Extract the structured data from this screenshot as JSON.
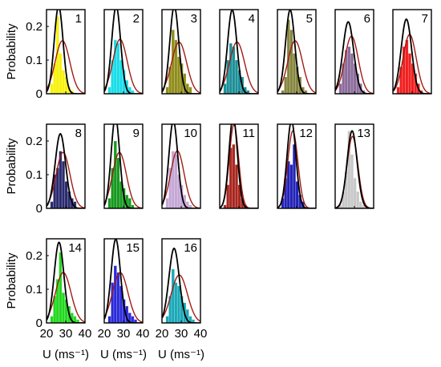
{
  "chart_data": {
    "type": "bar",
    "ylabel": "Probability",
    "xlabel": "U (ms⁻¹)",
    "xlim": [
      20,
      40
    ],
    "ylim": [
      0,
      0.25
    ],
    "xticks": [
      "20",
      "30",
      "40"
    ],
    "yticks": [
      "0",
      "0.1",
      "0.2"
    ],
    "bins": [
      22,
      23.5,
      25,
      26.5,
      28,
      29.5,
      31,
      32.5,
      34,
      35.5
    ],
    "panels": [
      {
        "id": "1",
        "color": "#f7f20a",
        "hist": [
          0.03,
          0.09,
          0.23,
          0.12,
          0.07,
          0.05,
          0.02,
          0.01,
          0,
          0
        ],
        "fit_black": {
          "mean": 26.3,
          "sd": 2.3
        },
        "fit_red": {
          "mean": 28.3,
          "sd": 3.8
        }
      },
      {
        "id": "2",
        "color": "#17dde8",
        "hist": [
          0.02,
          0.1,
          0.16,
          0.15,
          0.1,
          0.07,
          0.04,
          0.02,
          0.01,
          0
        ],
        "fit_black": {
          "mean": 26.2,
          "sd": 2.3
        },
        "fit_red": {
          "mean": 28.2,
          "sd": 3.7
        }
      },
      {
        "id": "3",
        "color": "#8f8d1a",
        "hist": [
          0.02,
          0.08,
          0.19,
          0.16,
          0.11,
          0.09,
          0.06,
          0.03,
          0.02,
          0
        ],
        "fit_black": {
          "mean": 26.4,
          "sd": 2.3
        },
        "fit_red": {
          "mean": 28.9,
          "sd": 3.9
        }
      },
      {
        "id": "4",
        "color": "#1c8f97",
        "hist": [
          0.03,
          0.1,
          0.15,
          0.14,
          0.1,
          0.07,
          0.05,
          0.02,
          0.01,
          0
        ],
        "fit_black": {
          "mean": 26.5,
          "sd": 2.4
        },
        "fit_red": {
          "mean": 29.0,
          "sd": 3.9
        }
      },
      {
        "id": "5",
        "color": "#85853f",
        "hist": [
          0.01,
          0.05,
          0.22,
          0.19,
          0.12,
          0.08,
          0.05,
          0.02,
          0.01,
          0
        ],
        "fit_black": {
          "mean": 26.6,
          "sd": 2.4
        },
        "fit_red": {
          "mean": 29.2,
          "sd": 3.8
        }
      },
      {
        "id": "6",
        "color": "#8b6c9a",
        "hist": [
          0.03,
          0.09,
          0.13,
          0.14,
          0.12,
          0.09,
          0.06,
          0.03,
          0.01,
          0
        ],
        "fit_black": {
          "mean": 26.8,
          "sd": 2.8
        },
        "fit_red": {
          "mean": 28.5,
          "sd": 3.5
        }
      },
      {
        "id": "7",
        "color": "#f01e1e",
        "hist": [
          0.02,
          0.08,
          0.14,
          0.16,
          0.12,
          0.09,
          0.06,
          0.03,
          0.01,
          0
        ],
        "fit_black": {
          "mean": 27.0,
          "sd": 2.7
        },
        "fit_red": {
          "mean": 28.7,
          "sd": 3.4
        }
      },
      {
        "id": "8",
        "color": "#2a2a6e",
        "hist": [
          0.02,
          0.1,
          0.12,
          0.17,
          0.14,
          0.08,
          0.05,
          0.03,
          0.02,
          0
        ],
        "fit_black": {
          "mean": 27.2,
          "sd": 2.7
        },
        "fit_red": {
          "mean": 28.6,
          "sd": 3.6
        }
      },
      {
        "id": "9",
        "color": "#16991e",
        "hist": [
          0.03,
          0.12,
          0.2,
          0.15,
          0.08,
          0.06,
          0.04,
          0.03,
          0.01,
          0
        ],
        "fit_black": {
          "mean": 25.8,
          "sd": 2.2
        },
        "fit_red": {
          "mean": 27.9,
          "sd": 3.6
        }
      },
      {
        "id": "10",
        "color": "#c4a7d6",
        "hist": [
          0.03,
          0.12,
          0.17,
          0.16,
          0.1,
          0.07,
          0.04,
          0.02,
          0.01,
          0
        ],
        "fit_black": {
          "mean": 25.9,
          "sd": 2.3
        },
        "fit_red": {
          "mean": 28.0,
          "sd": 3.5
        }
      },
      {
        "id": "11",
        "color": "#a8261e",
        "hist": [
          0.01,
          0.07,
          0.18,
          0.19,
          0.13,
          0.07,
          0.03,
          0.01,
          0,
          0
        ],
        "fit_black": {
          "mean": 27.0,
          "sd": 2.2
        },
        "fit_red": {
          "mean": 27.4,
          "sd": 2.4
        }
      },
      {
        "id": "12",
        "color": "#2222b8",
        "hist": [
          0.03,
          0.09,
          0.14,
          0.13,
          0.19,
          0.08,
          0.04,
          0.02,
          0,
          0
        ],
        "fit_black": {
          "mean": 27.3,
          "sd": 2.3
        },
        "fit_red": {
          "mean": 28.0,
          "sd": 2.6
        }
      },
      {
        "id": "13",
        "color": "#c8c8c8",
        "hist": [
          0.01,
          0.05,
          0.11,
          0.23,
          0.16,
          0.09,
          0.05,
          0.02,
          0.01,
          0
        ],
        "fit_black": {
          "mean": 28.8,
          "sd": 2.6
        },
        "fit_red": {
          "mean": 29.0,
          "sd": 2.8
        }
      },
      {
        "id": "14",
        "color": "#22d81e",
        "hist": [
          0.02,
          0.08,
          0.13,
          0.21,
          0.09,
          0.07,
          0.05,
          0.03,
          0.02,
          0.01
        ],
        "fit_black": {
          "mean": 26.5,
          "sd": 2.5
        },
        "fit_red": {
          "mean": 28.7,
          "sd": 4.0
        }
      },
      {
        "id": "15",
        "color": "#2a2ad8",
        "hist": [
          0.02,
          0.12,
          0.17,
          0.15,
          0.11,
          0.07,
          0.05,
          0.03,
          0.02,
          0.01
        ],
        "fit_black": {
          "mean": 26.0,
          "sd": 2.4
        },
        "fit_red": {
          "mean": 28.3,
          "sd": 4.0
        }
      },
      {
        "id": "16",
        "color": "#1aa8b8",
        "hist": [
          0.02,
          0.08,
          0.16,
          0.12,
          0.11,
          0.08,
          0.06,
          0.04,
          0.02,
          0.01
        ],
        "fit_black": {
          "mean": 26.3,
          "sd": 2.7
        },
        "fit_red": {
          "mean": 29.0,
          "sd": 4.2
        }
      }
    ]
  }
}
